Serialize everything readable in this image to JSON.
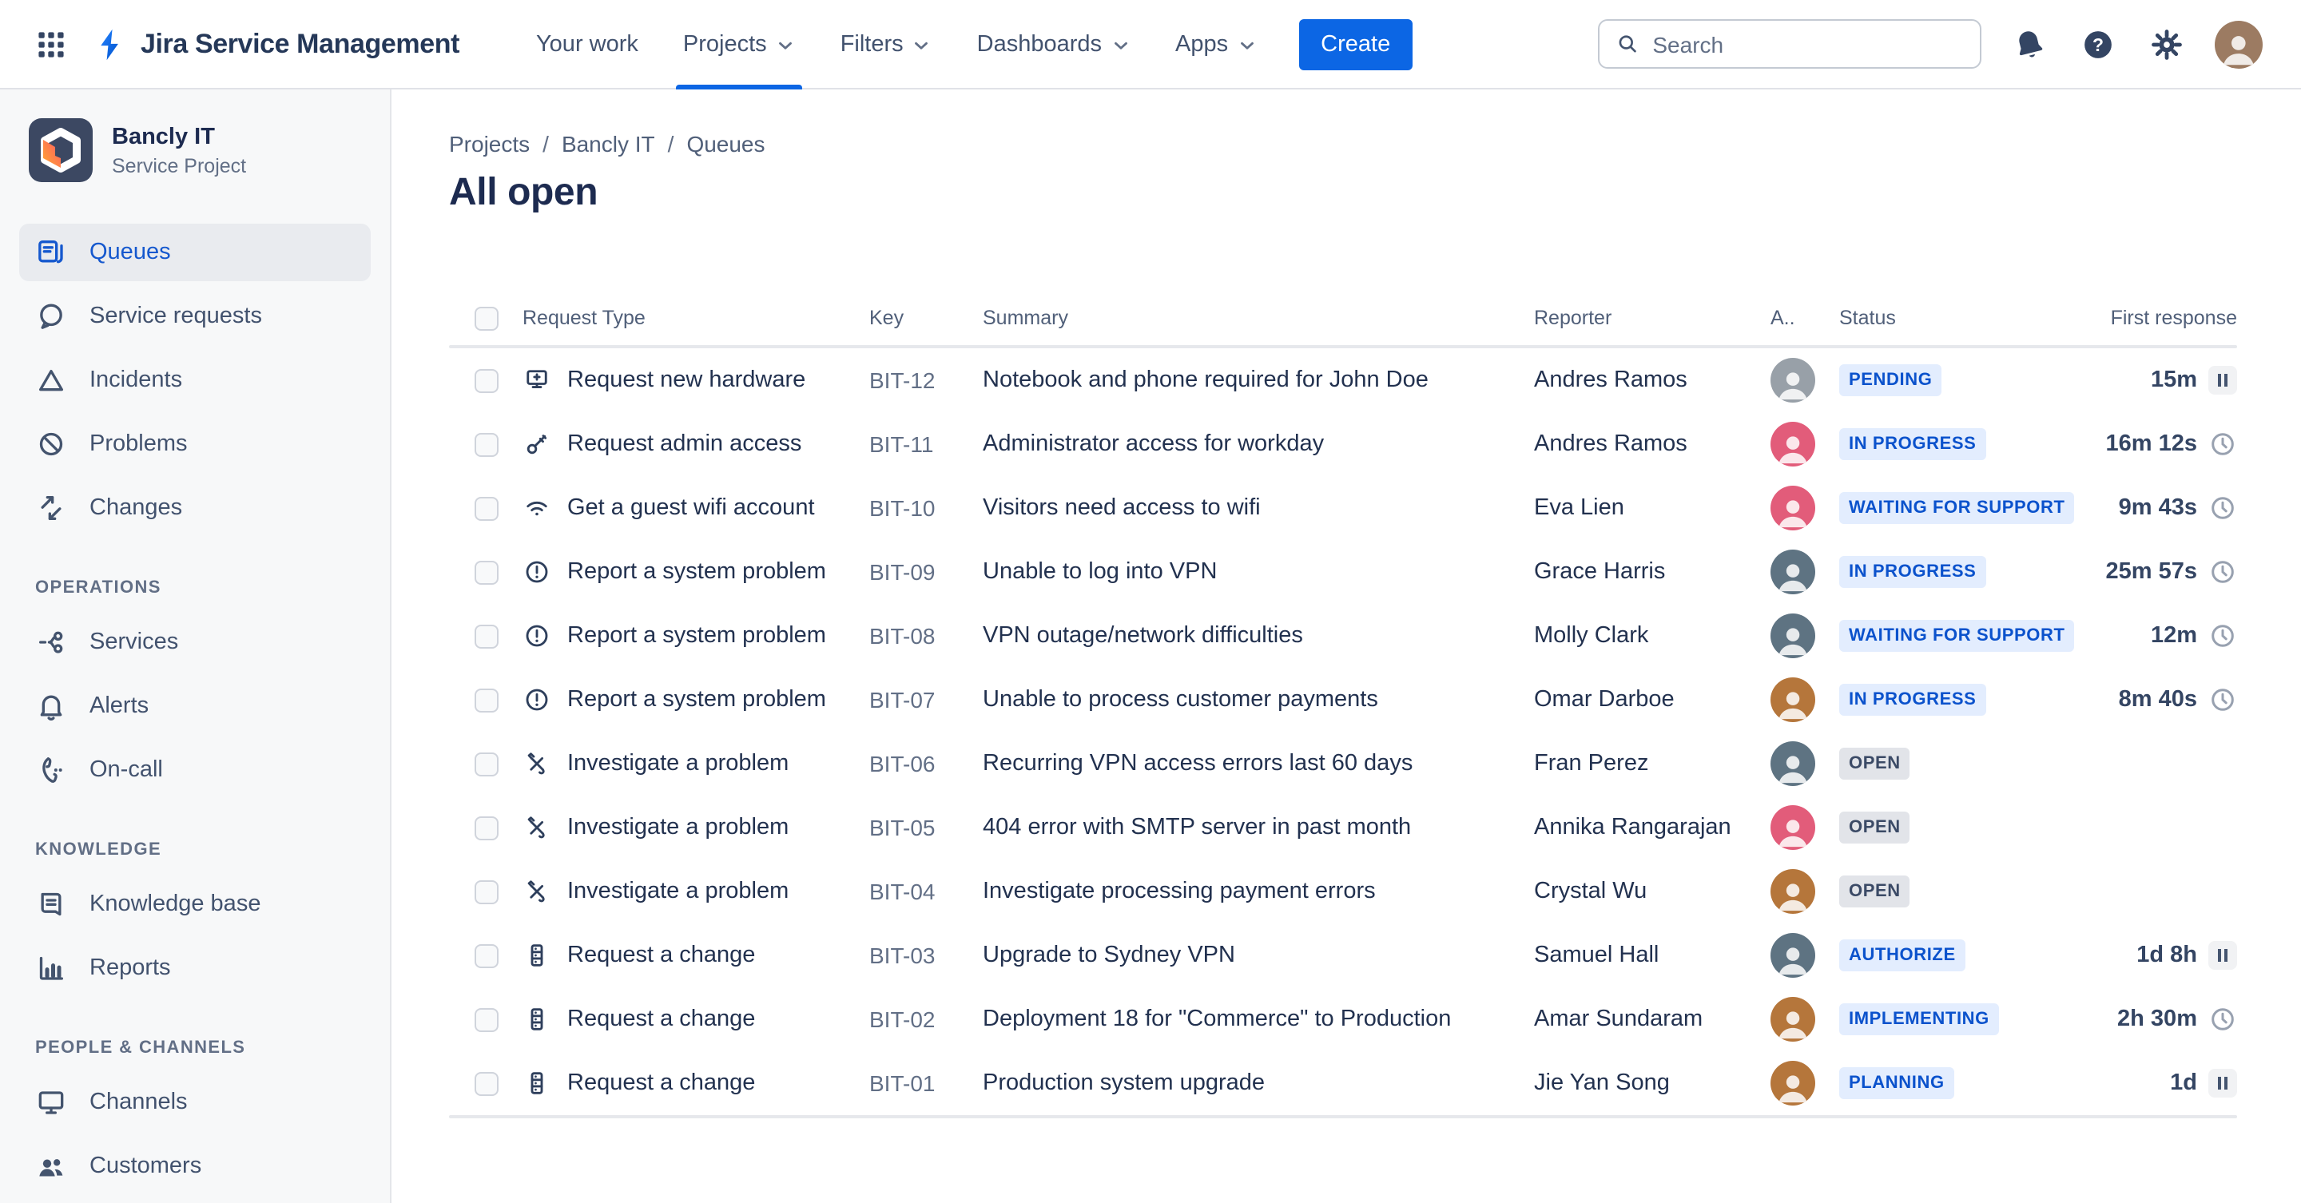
{
  "header": {
    "app_title": "Jira Service Management",
    "nav": [
      {
        "label": "Your work",
        "chevron": false,
        "active": false
      },
      {
        "label": "Projects",
        "chevron": true,
        "active": true
      },
      {
        "label": "Filters",
        "chevron": true,
        "active": false
      },
      {
        "label": "Dashboards",
        "chevron": true,
        "active": false
      },
      {
        "label": "Apps",
        "chevron": true,
        "active": false
      }
    ],
    "create_label": "Create",
    "search_placeholder": "Search",
    "user_avatar_color": "#9C7B62"
  },
  "sidebar": {
    "project_name": "Bancly IT",
    "project_type": "Service Project",
    "items": [
      {
        "label": "Queues",
        "icon": "queues",
        "active": true
      },
      {
        "label": "Service requests",
        "icon": "chat",
        "active": false
      },
      {
        "label": "Incidents",
        "icon": "incident",
        "active": false
      },
      {
        "label": "Problems",
        "icon": "problem",
        "active": false
      },
      {
        "label": "Changes",
        "icon": "changes",
        "active": false
      },
      {
        "section": "OPERATIONS"
      },
      {
        "label": "Services",
        "icon": "services",
        "active": false
      },
      {
        "label": "Alerts",
        "icon": "bell",
        "active": false
      },
      {
        "label": "On-call",
        "icon": "oncall",
        "active": false
      },
      {
        "section": "KNOWLEDGE"
      },
      {
        "label": "Knowledge base",
        "icon": "book",
        "active": false
      },
      {
        "label": "Reports",
        "icon": "chart",
        "active": false
      },
      {
        "section": "PEOPLE & CHANNELS"
      },
      {
        "label": "Channels",
        "icon": "monitor",
        "active": false
      },
      {
        "label": "Customers",
        "icon": "people",
        "active": false
      }
    ]
  },
  "breadcrumb": {
    "items": [
      "Projects",
      "Bancly IT",
      "Queues"
    ],
    "separator": "/"
  },
  "page": {
    "title": "All open"
  },
  "colors": {
    "accent": "#0C66E4",
    "badge_blue_bg": "#E3EDFE",
    "badge_blue_text": "#0B52CC",
    "badge_gray_bg": "#E2E4E9",
    "badge_gray_text": "#3B4A66"
  },
  "table": {
    "headers": {
      "request_type": "Request Type",
      "key": "Key",
      "summary": "Summary",
      "reporter": "Reporter",
      "assignee": "A..",
      "status": "Status",
      "first_response": "First response"
    },
    "rows": [
      {
        "type": "Request new hardware",
        "icon": "hardware",
        "key": "BIT-12",
        "summary": "Notebook and phone required for John Doe",
        "reporter": "Andres Ramos",
        "avatar_color": "#98A0A8",
        "status": "PENDING",
        "status_kind": "blue",
        "response": "15m",
        "response_icon": "pause"
      },
      {
        "type": "Request admin access",
        "icon": "key",
        "key": "BIT-11",
        "summary": "Administrator access for workday",
        "reporter": "Andres Ramos",
        "avatar_color": "#E25C7A",
        "status": "IN PROGRESS",
        "status_kind": "blue",
        "response": "16m 12s",
        "response_icon": "clock"
      },
      {
        "type": "Get a guest wifi account",
        "icon": "wifi",
        "key": "BIT-10",
        "summary": "Visitors need access to wifi",
        "reporter": "Eva Lien",
        "avatar_color": "#E25C7A",
        "status": "WAITING FOR SUPPORT",
        "status_kind": "blue",
        "response": "9m 43s",
        "response_icon": "clock"
      },
      {
        "type": "Report a system problem",
        "icon": "alert",
        "key": "BIT-09",
        "summary": "Unable to log into VPN",
        "reporter": "Grace Harris",
        "avatar_color": "#5E7382",
        "status": "IN PROGRESS",
        "status_kind": "blue",
        "response": "25m 57s",
        "response_icon": "clock"
      },
      {
        "type": "Report a system problem",
        "icon": "alert",
        "key": "BIT-08",
        "summary": "VPN outage/network difficulties",
        "reporter": "Molly Clark",
        "avatar_color": "#5E7382",
        "status": "WAITING FOR SUPPORT",
        "status_kind": "blue",
        "response": "12m",
        "response_icon": "clock"
      },
      {
        "type": "Report a system problem",
        "icon": "alert",
        "key": "BIT-07",
        "summary": "Unable to process customer payments",
        "reporter": "Omar Darboe",
        "avatar_color": "#B5763B",
        "status": "IN PROGRESS",
        "status_kind": "blue",
        "response": "8m 40s",
        "response_icon": "clock"
      },
      {
        "type": "Investigate a problem",
        "icon": "tools",
        "key": "BIT-06",
        "summary": "Recurring VPN access errors last 60 days",
        "reporter": "Fran Perez",
        "avatar_color": "#5E7382",
        "status": "OPEN",
        "status_kind": "gray",
        "response": "",
        "response_icon": "none"
      },
      {
        "type": "Investigate a problem",
        "icon": "tools",
        "key": "BIT-05",
        "summary": "404 error with SMTP server in past month",
        "reporter": "Annika Rangarajan",
        "avatar_color": "#E25C7A",
        "status": "OPEN",
        "status_kind": "gray",
        "response": "",
        "response_icon": "none"
      },
      {
        "type": "Investigate a problem",
        "icon": "tools",
        "key": "BIT-04",
        "summary": "Investigate processing payment errors",
        "reporter": "Crystal Wu",
        "avatar_color": "#B5763B",
        "status": "OPEN",
        "status_kind": "gray",
        "response": "",
        "response_icon": "none"
      },
      {
        "type": "Request a change",
        "icon": "server",
        "key": "BIT-03",
        "summary": "Upgrade to Sydney VPN",
        "reporter": "Samuel Hall",
        "avatar_color": "#5E7382",
        "status": "AUTHORIZE",
        "status_kind": "blue",
        "response": "1d 8h",
        "response_icon": "pause"
      },
      {
        "type": "Request a change",
        "icon": "server",
        "key": "BIT-02",
        "summary": "Deployment 18 for \"Commerce\" to Production",
        "reporter": "Amar Sundaram",
        "avatar_color": "#B5763B",
        "status": "IMPLEMENTING",
        "status_kind": "blue",
        "response": "2h 30m",
        "response_icon": "clock"
      },
      {
        "type": "Request a change",
        "icon": "server",
        "key": "BIT-01",
        "summary": "Production system upgrade",
        "reporter": "Jie Yan Song",
        "avatar_color": "#B5763B",
        "status": "PLANNING",
        "status_kind": "blue",
        "response": "1d",
        "response_icon": "pause"
      }
    ]
  }
}
